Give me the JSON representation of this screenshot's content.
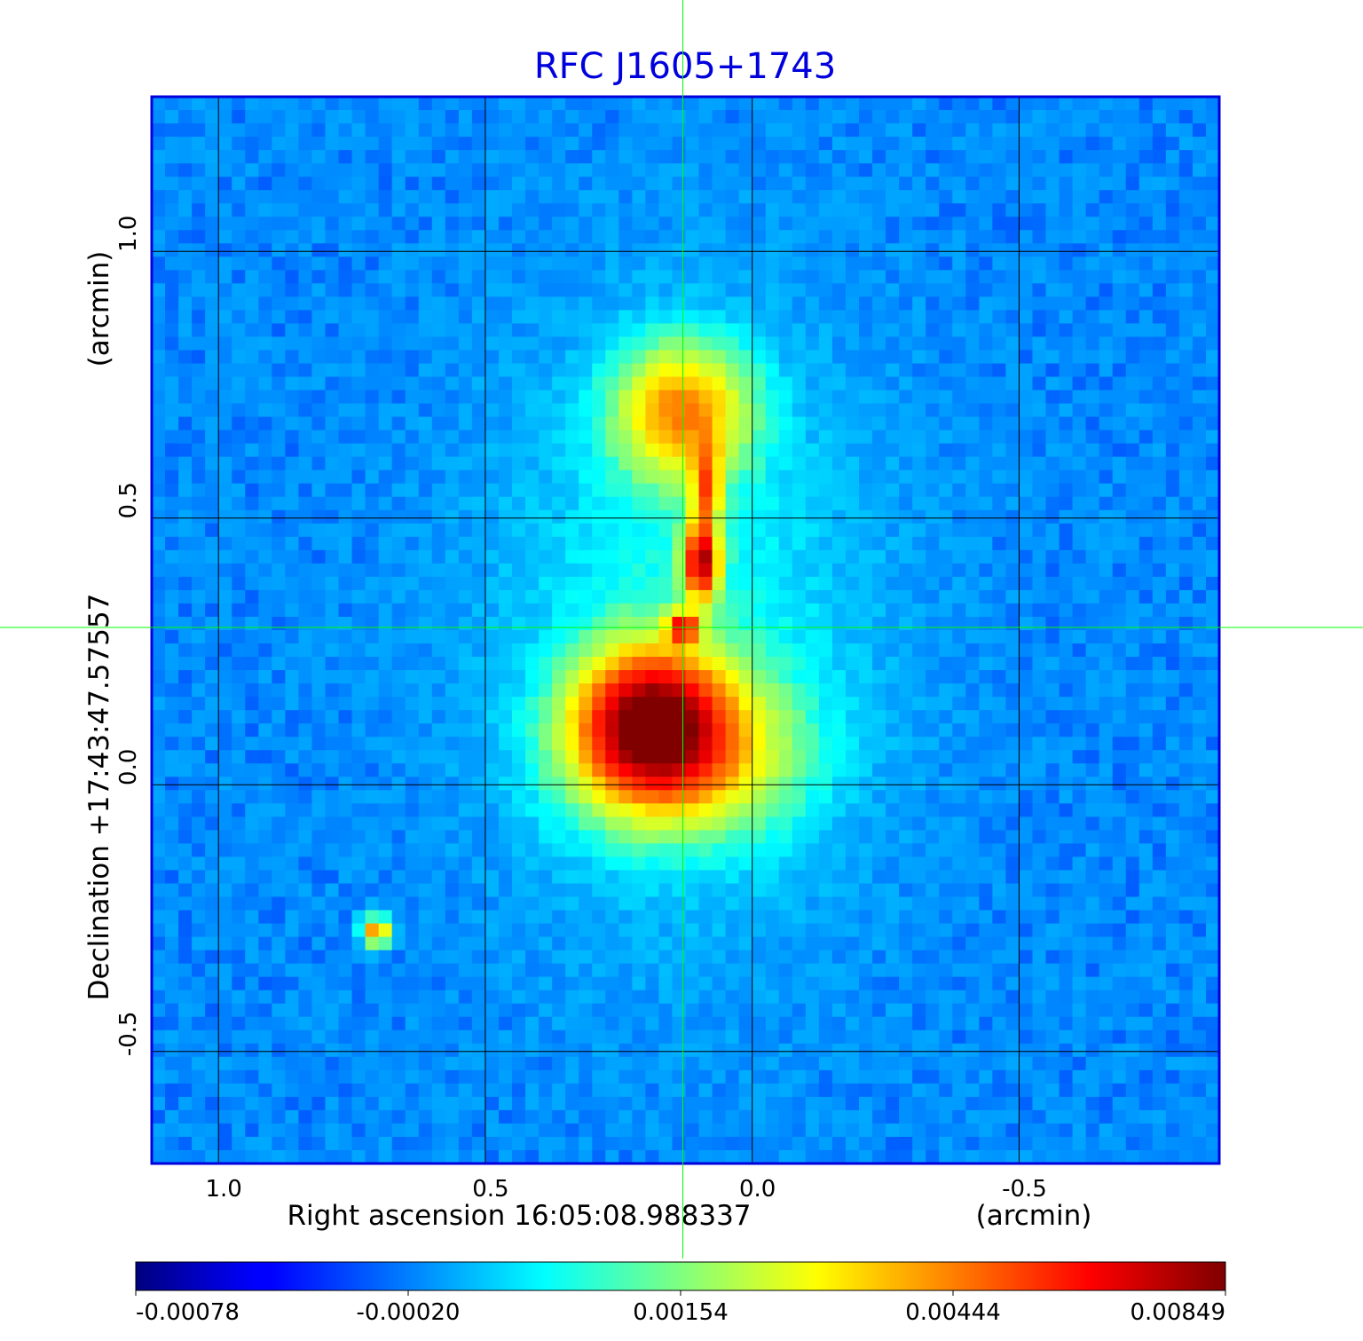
{
  "chart_data": {
    "type": "heatmap",
    "title": "RFC J1605+1743",
    "xlabel": "Right ascension  16:05:08.988337",
    "xunit": "(arcmin)",
    "ylabel": "Declination  +17:43:47.57557",
    "yunit": "(arcmin)",
    "x_range": [
      1.125,
      -0.875
    ],
    "y_range": [
      -0.71,
      1.29
    ],
    "x_direction": "decreasing to the right",
    "x_ticks": [
      1.0,
      0.5,
      0.0,
      -0.5
    ],
    "x_tick_labels": [
      "1.0",
      "0.5",
      "0.0",
      "-0.5"
    ],
    "y_ticks": [
      -0.5,
      0.0,
      0.5,
      1.0
    ],
    "y_tick_labels": [
      "-0.5",
      "0.0",
      "0.5",
      "1.0"
    ],
    "grid": true,
    "crosshair": {
      "x": 0.13,
      "y": 0.295
    },
    "colormap": "jet",
    "colorbar_ticks": [
      "-0.00078",
      "-0.00020",
      "0.00154",
      "0.00444",
      "0.00849"
    ],
    "colorbar_tick_fraction": [
      0.0,
      0.25,
      0.5,
      0.75,
      1.0
    ],
    "features": [
      {
        "name": "southern lobe",
        "x": 0.19,
        "y": 0.12,
        "sx": 0.09,
        "sy": 0.09,
        "amp": 0.007
      },
      {
        "name": "southern lobe wide",
        "x": 0.13,
        "y": 0.06,
        "sx": 0.14,
        "sy": 0.1,
        "amp": 0.0035
      },
      {
        "name": "jet knot",
        "x": 0.095,
        "y": 0.42,
        "sx": 0.022,
        "sy": 0.05,
        "amp": 0.0072
      },
      {
        "name": "core",
        "x": 0.13,
        "y": 0.295,
        "sx": 0.02,
        "sy": 0.02,
        "amp": 0.0052
      },
      {
        "name": "jet upper",
        "x": 0.085,
        "y": 0.56,
        "sx": 0.018,
        "sy": 0.05,
        "amp": 0.004
      },
      {
        "name": "northern lobe",
        "x": 0.13,
        "y": 0.7,
        "sx": 0.085,
        "sy": 0.085,
        "amp": 0.0042
      },
      {
        "name": "compact source",
        "x": 0.705,
        "y": -0.275,
        "sx": 0.018,
        "sy": 0.018,
        "amp": 0.0045
      },
      {
        "name": "diffuse halo",
        "x": 0.13,
        "y": 0.3,
        "sx": 0.22,
        "sy": 0.35,
        "amp": 0.0009
      }
    ],
    "background_level": -0.0001,
    "noise_level": 0.00018
  },
  "colors": {
    "axis": "#0000dd",
    "title": "#0000dd",
    "crosshair": "#00ff00",
    "grid": "#000000"
  }
}
